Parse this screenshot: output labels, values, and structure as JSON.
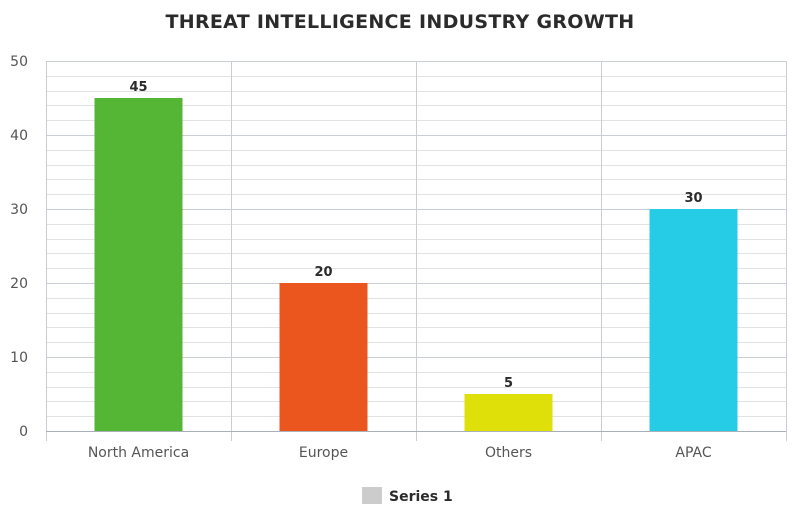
{
  "chart_data": {
    "type": "bar",
    "title": "THREAT INTELLIGENCE INDUSTRY GROWTH",
    "xlabel": "",
    "ylabel": "",
    "categories": [
      "North America",
      "Europe",
      "Others",
      "APAC"
    ],
    "series": [
      {
        "name": "Series 1",
        "values": [
          45,
          20,
          5,
          30
        ],
        "data_labels": [
          "45",
          "20",
          "5",
          "30"
        ],
        "colors": [
          "#55b535",
          "#ea561e",
          "#dfe00a",
          "#26cbe6"
        ]
      }
    ],
    "ylim": [
      0,
      50
    ],
    "yticks": [
      0,
      10,
      20,
      30,
      40,
      50
    ],
    "ytick_labels": [
      "0",
      "10",
      "20",
      "30",
      "40",
      "50"
    ],
    "minor_gridlines_per_major": 5,
    "grid": true,
    "legend": {
      "position": "bottom",
      "label": "Series 1",
      "swatch_color": "#cccccc"
    },
    "colors": {
      "grid_minor": "#e2e2e2",
      "grid_major": "#c9ced4",
      "axis": "#aab0b8"
    }
  }
}
